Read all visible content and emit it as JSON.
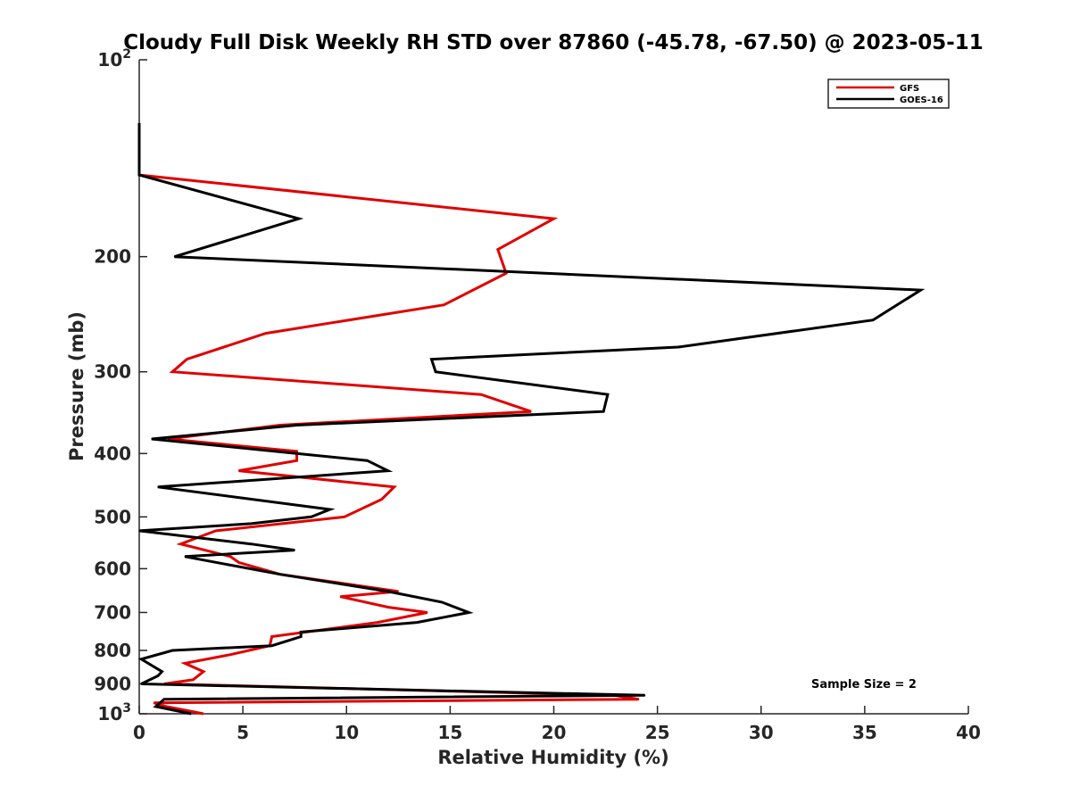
{
  "chart_data": {
    "type": "line",
    "title": "Cloudy Full Disk Weekly RH STD over 87860 (-45.78, -67.50) @ 2023-05-11",
    "xlabel": "Relative Humidity (%)",
    "ylabel": "Pressure (mb)",
    "xlim": [
      0,
      40
    ],
    "ylim": [
      100,
      1000
    ],
    "yscale": "log",
    "y_reversed": true,
    "grid": false,
    "legend_position": "top-right",
    "x_ticks": [
      "0",
      "5",
      "10",
      "15",
      "20",
      "25",
      "30",
      "35",
      "40"
    ],
    "y_ticks": [
      {
        "value": 100,
        "base": "10",
        "exp": "2"
      },
      {
        "value": 200,
        "label": "200"
      },
      {
        "value": 300,
        "label": "300"
      },
      {
        "value": 400,
        "label": "400"
      },
      {
        "value": 500,
        "label": "500"
      },
      {
        "value": 600,
        "label": "600"
      },
      {
        "value": 700,
        "label": "700"
      },
      {
        "value": 800,
        "label": "800"
      },
      {
        "value": 900,
        "label": "900"
      },
      {
        "value": 1000,
        "base": "10",
        "exp": "3"
      }
    ],
    "annotation": "Sample Size = 2",
    "series": [
      {
        "name": "GFS",
        "color": "#e00000",
        "points": [
          [
            0,
            125
          ],
          [
            0,
            150
          ],
          [
            20,
            175
          ],
          [
            17.3,
            195
          ],
          [
            17.7,
            212
          ],
          [
            14.7,
            237
          ],
          [
            6.1,
            262
          ],
          [
            2.3,
            287
          ],
          [
            1.6,
            300
          ],
          [
            16.5,
            325
          ],
          [
            18.9,
            345
          ],
          [
            6.8,
            362
          ],
          [
            1.4,
            380
          ],
          [
            7.6,
            397
          ],
          [
            7.6,
            410
          ],
          [
            4.8,
            425
          ],
          [
            12.3,
            450
          ],
          [
            11.7,
            470
          ],
          [
            9.9,
            500
          ],
          [
            3.7,
            525
          ],
          [
            2.0,
            550
          ],
          [
            4.4,
            575
          ],
          [
            4.8,
            587
          ],
          [
            6.8,
            612
          ],
          [
            12.5,
            650
          ],
          [
            9.7,
            662
          ],
          [
            12.0,
            687
          ],
          [
            13.9,
            700
          ],
          [
            11.5,
            725
          ],
          [
            6.4,
            762
          ],
          [
            6.3,
            787
          ],
          [
            4.4,
            812
          ],
          [
            2.2,
            837
          ],
          [
            3.1,
            862
          ],
          [
            2.6,
            887
          ],
          [
            1.2,
            900
          ],
          [
            22.9,
            937
          ],
          [
            24.1,
            950
          ],
          [
            0.7,
            962
          ],
          [
            1.3,
            975
          ],
          [
            3.1,
            1000
          ]
        ]
      },
      {
        "name": "GOES-16",
        "color": "#000000",
        "points": [
          [
            0,
            125
          ],
          [
            0,
            150
          ],
          [
            7.7,
            175
          ],
          [
            1.7,
            200
          ],
          [
            37.7,
            225
          ],
          [
            35.4,
            250
          ],
          [
            26.0,
            275
          ],
          [
            14.1,
            287
          ],
          [
            14.3,
            300
          ],
          [
            22.6,
            325
          ],
          [
            22.4,
            345
          ],
          [
            7.6,
            362
          ],
          [
            0.6,
            380
          ],
          [
            11.0,
            410
          ],
          [
            12.0,
            425
          ],
          [
            0.9,
            450
          ],
          [
            9.2,
            487
          ],
          [
            8.3,
            500
          ],
          [
            5.4,
            512
          ],
          [
            0,
            525
          ],
          [
            5.4,
            550
          ],
          [
            7.5,
            562
          ],
          [
            2.2,
            575
          ],
          [
            6.8,
            612
          ],
          [
            12.0,
            650
          ],
          [
            14.6,
            675
          ],
          [
            15.9,
            700
          ],
          [
            13.4,
            725
          ],
          [
            7.8,
            750
          ],
          [
            7.8,
            762
          ],
          [
            6.4,
            787
          ],
          [
            1.6,
            800
          ],
          [
            0.1,
            825
          ],
          [
            1.1,
            862
          ],
          [
            0.9,
            875
          ],
          [
            0.1,
            900
          ],
          [
            24.4,
            937
          ],
          [
            1.2,
            950
          ],
          [
            0.8,
            975
          ],
          [
            2.5,
            1000
          ]
        ]
      }
    ]
  }
}
